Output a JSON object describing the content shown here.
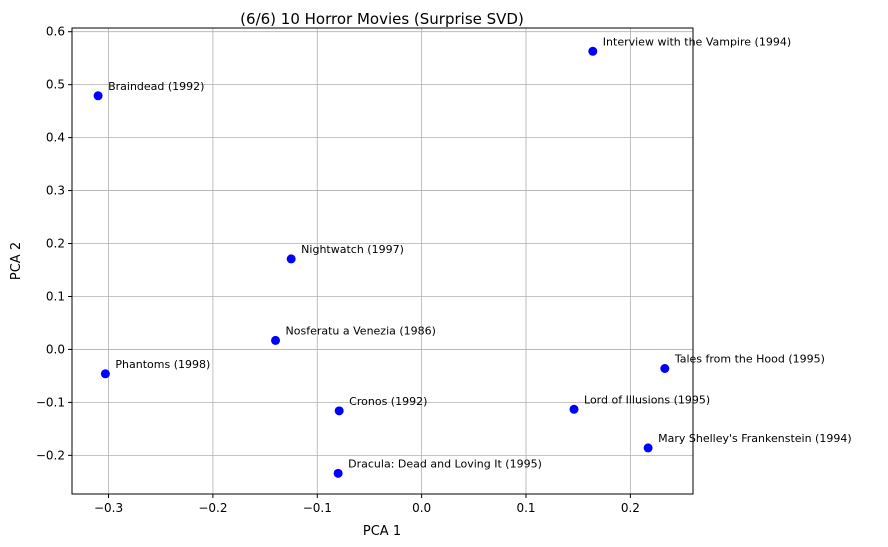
{
  "chart_data": {
    "type": "scatter",
    "title": "(6/6) 10 Horror Movies (Surprise SVD)",
    "xlabel": "PCA 1",
    "ylabel": "PCA 2",
    "xlim": [
      -0.335,
      0.26
    ],
    "ylim": [
      -0.273,
      0.607
    ],
    "xticks": [
      -0.3,
      -0.2,
      -0.1,
      0.0,
      0.1,
      0.2
    ],
    "xtick_labels": [
      "−0.3",
      "−0.2",
      "−0.1",
      "0.0",
      "0.1",
      "0.2"
    ],
    "yticks": [
      -0.2,
      -0.1,
      0.0,
      0.1,
      0.2,
      0.3,
      0.4,
      0.5,
      0.6
    ],
    "ytick_labels": [
      "−0.2",
      "−0.1",
      "0.0",
      "0.1",
      "0.2",
      "0.3",
      "0.4",
      "0.5",
      "0.6"
    ],
    "grid": true,
    "point_color": "#0000ff",
    "points": [
      {
        "label": "Interview with the Vampire (1994)",
        "x": 0.164,
        "y": 0.563
      },
      {
        "label": "Braindead (1992)",
        "x": -0.31,
        "y": 0.479
      },
      {
        "label": "Nightwatch (1997)",
        "x": -0.125,
        "y": 0.171
      },
      {
        "label": "Nosferatu a Venezia (1986)",
        "x": -0.14,
        "y": 0.017
      },
      {
        "label": "Phantoms (1998)",
        "x": -0.303,
        "y": -0.046
      },
      {
        "label": "Tales from the Hood (1995)",
        "x": 0.233,
        "y": -0.036
      },
      {
        "label": "Cronos (1992)",
        "x": -0.079,
        "y": -0.116
      },
      {
        "label": "Lord of Illusions (1995)",
        "x": 0.146,
        "y": -0.113
      },
      {
        "label": "Mary Shelley's Frankenstein (1994)",
        "x": 0.217,
        "y": -0.186
      },
      {
        "label": "Dracula: Dead and Loving It (1995)",
        "x": -0.08,
        "y": -0.234
      }
    ]
  }
}
